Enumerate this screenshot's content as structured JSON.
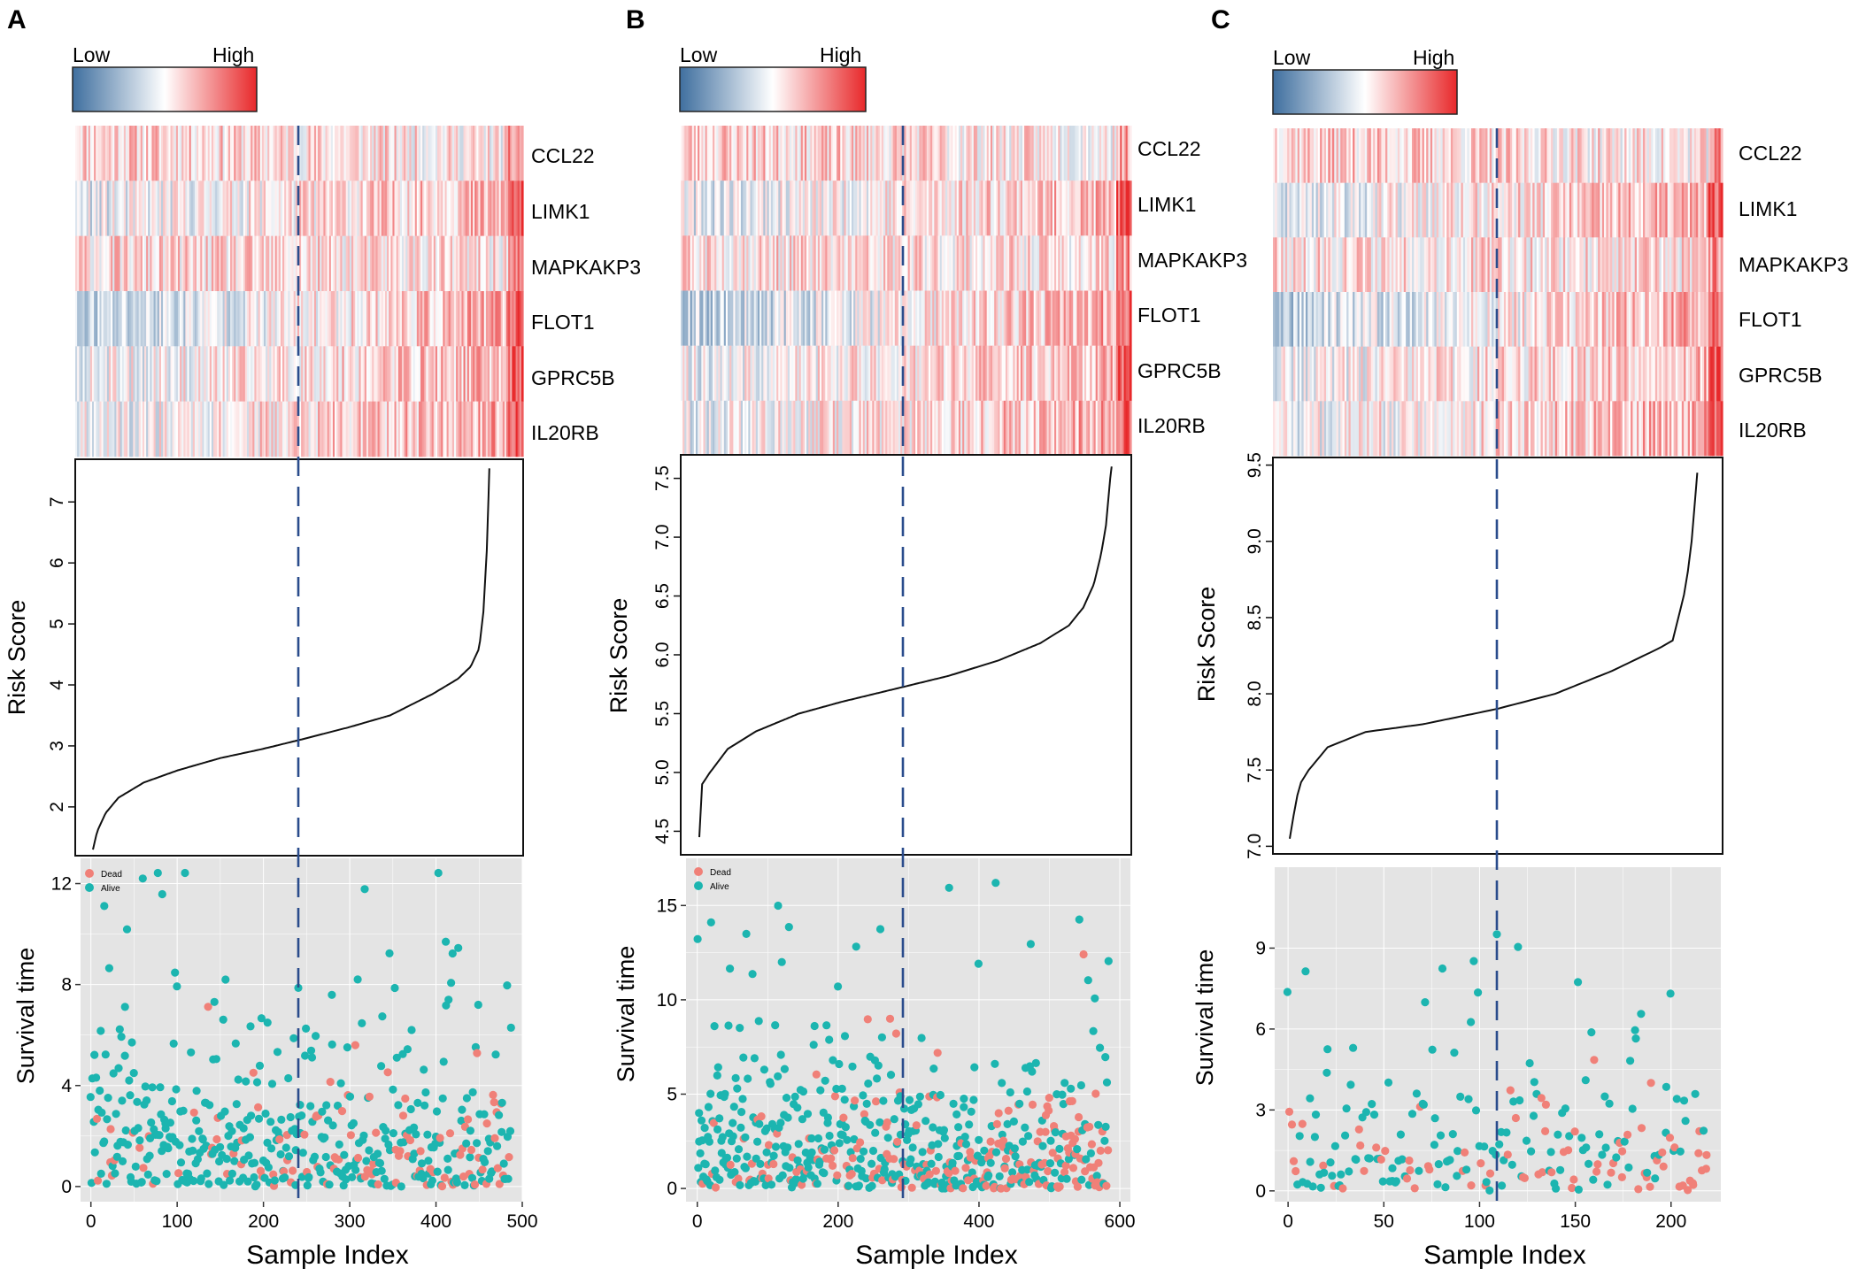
{
  "figure": {
    "colors": {
      "low": "#3f6f9f",
      "mid": "#ffffff",
      "high": "#e8292b",
      "dead": "#f08078",
      "alive": "#1cb5b0",
      "panel_bg": "#e4e4e4",
      "grid": "#ffffff",
      "cutoff": "#2a4c8c"
    }
  },
  "chart_data": [
    {
      "panel": "A",
      "type": "scatter",
      "colorbar": {
        "low": "Low",
        "high": "High"
      },
      "genes": [
        "CCL22",
        "LIMK1",
        "MAPKAKP3",
        "FLOT1",
        "GPRC5B",
        "IL20RB"
      ],
      "n_samples": 488,
      "cutoff_index": 244,
      "risk_plot": {
        "ylabel": "Risk  Score",
        "ylim": [
          1.2,
          7.7
        ],
        "yticks": [
          2,
          3,
          4,
          5,
          6,
          7
        ],
        "curve": [
          [
            0,
            1.3
          ],
          [
            5,
            1.6
          ],
          [
            15,
            1.9
          ],
          [
            30,
            2.15
          ],
          [
            60,
            2.4
          ],
          [
            100,
            2.6
          ],
          [
            150,
            2.8
          ],
          [
            200,
            2.95
          ],
          [
            244,
            3.1
          ],
          [
            300,
            3.3
          ],
          [
            350,
            3.5
          ],
          [
            400,
            3.85
          ],
          [
            430,
            4.1
          ],
          [
            445,
            4.3
          ],
          [
            455,
            4.6
          ],
          [
            460,
            5.2
          ],
          [
            464,
            6.2
          ],
          [
            466,
            7.1
          ],
          [
            467,
            7.55
          ]
        ]
      },
      "survival_plot": {
        "ylabel": "Survival time",
        "xlabel": "Sample Index",
        "ylim": [
          -0.6,
          13
        ],
        "yticks": [
          0,
          4,
          8,
          12
        ],
        "xlim": [
          -12,
          500
        ],
        "xticks": [
          0,
          100,
          200,
          300,
          400,
          500
        ],
        "legend": {
          "dead": "Dead",
          "alive": "Alive",
          "position": "top-left"
        },
        "dead_fraction": [
          0.05,
          0.45
        ],
        "ymax_scale": 11.5
      }
    },
    {
      "panel": "B",
      "type": "scatter",
      "colorbar": {
        "low": "Low",
        "high": "High"
      },
      "genes": [
        "CCL22",
        "LIMK1",
        "MAPKAKP3",
        "FLOT1",
        "GPRC5B",
        "IL20RB"
      ],
      "n_samples": 585,
      "cutoff_index": 282,
      "risk_plot": {
        "ylabel": "Risk  Score",
        "ylim": [
          4.3,
          7.7
        ],
        "yticks": [
          "4.5",
          "5.0",
          "5.5",
          "6.0",
          "6.5",
          "7.0",
          "7.5"
        ],
        "curve": [
          [
            0,
            4.45
          ],
          [
            4,
            4.9
          ],
          [
            15,
            5.0
          ],
          [
            40,
            5.2
          ],
          [
            80,
            5.35
          ],
          [
            140,
            5.5
          ],
          [
            200,
            5.6
          ],
          [
            282,
            5.72
          ],
          [
            350,
            5.82
          ],
          [
            420,
            5.95
          ],
          [
            480,
            6.1
          ],
          [
            520,
            6.25
          ],
          [
            540,
            6.4
          ],
          [
            555,
            6.6
          ],
          [
            565,
            6.85
          ],
          [
            572,
            7.1
          ],
          [
            578,
            7.5
          ],
          [
            580,
            7.6
          ]
        ]
      },
      "survival_plot": {
        "ylabel": "Survival time",
        "xlabel": "Sample Index",
        "ylim": [
          -0.7,
          17.5
        ],
        "yticks": [
          0,
          5,
          10,
          15
        ],
        "xlim": [
          -16,
          615
        ],
        "xticks": [
          0,
          200,
          400,
          600
        ],
        "legend": {
          "dead": "Dead",
          "alive": "Alive",
          "position": "top-left"
        },
        "dead_fraction": [
          0.08,
          0.5
        ],
        "ymax_scale": 15
      }
    },
    {
      "panel": "C",
      "type": "scatter",
      "colorbar": {
        "low": "Low",
        "high": "High"
      },
      "genes": [
        "CCL22",
        "LIMK1",
        "MAPKAKP3",
        "FLOT1",
        "GPRC5B",
        "IL20RB"
      ],
      "n_samples": 220,
      "cutoff_index": 109,
      "risk_plot": {
        "ylabel": "Risk  Score",
        "ylim": [
          6.95,
          9.55
        ],
        "yticks": [
          "7.0",
          "7.5",
          "8.0",
          "8.5",
          "9.0",
          "9.5"
        ],
        "curve": [
          [
            0,
            7.05
          ],
          [
            2,
            7.2
          ],
          [
            5,
            7.4
          ],
          [
            10,
            7.5
          ],
          [
            20,
            7.65
          ],
          [
            40,
            7.75
          ],
          [
            70,
            7.8
          ],
          [
            109,
            7.9
          ],
          [
            140,
            8.0
          ],
          [
            170,
            8.15
          ],
          [
            195,
            8.3
          ],
          [
            202,
            8.35
          ],
          [
            205,
            8.5
          ],
          [
            209,
            8.7
          ],
          [
            212,
            9.0
          ],
          [
            214,
            9.3
          ],
          [
            215,
            9.45
          ]
        ]
      },
      "survival_plot": {
        "ylabel": "Survival time",
        "xlabel": "Sample Index",
        "ylim": [
          -0.4,
          12
        ],
        "yticks": [
          0,
          3,
          6,
          9
        ],
        "xlim": [
          -7,
          226
        ],
        "xticks": [
          0,
          50,
          100,
          150,
          200
        ],
        "legend": null,
        "dead_fraction": [
          0.15,
          0.55
        ],
        "ymax_scale": 10.5
      }
    }
  ]
}
